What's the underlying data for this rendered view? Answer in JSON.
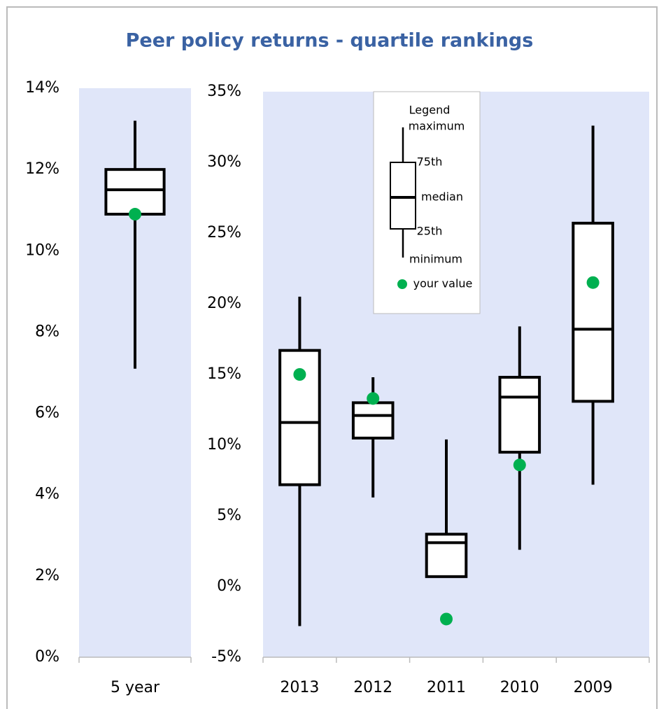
{
  "chart_data": [
    {
      "type": "box",
      "title": "Peer policy returns - quartile rankings",
      "categories": [
        "5 year"
      ],
      "max": [
        13.2
      ],
      "q3": [
        12.0
      ],
      "median": [
        11.5
      ],
      "q1": [
        10.9
      ],
      "min": [
        7.1
      ],
      "your_value": [
        10.9
      ],
      "box_color": "#000000",
      "dot_color": "#00b050",
      "background": "#e0e6f9",
      "ylim": [
        0,
        14
      ],
      "yticks": [
        {
          "value": 0,
          "label": "0%"
        },
        {
          "value": 2,
          "label": "2%"
        },
        {
          "value": 4,
          "label": "4%"
        },
        {
          "value": 6,
          "label": "6%"
        },
        {
          "value": 8,
          "label": "8%"
        },
        {
          "value": 10,
          "label": "10%"
        },
        {
          "value": 12,
          "label": "12%"
        },
        {
          "value": 14,
          "label": "14%"
        }
      ]
    },
    {
      "type": "box",
      "categories": [
        "2013",
        "2012",
        "2011",
        "2010",
        "2009"
      ],
      "max": [
        20.5,
        14.8,
        10.4,
        18.4,
        32.6
      ],
      "q3": [
        16.7,
        13.0,
        3.7,
        14.8,
        25.7
      ],
      "median": [
        11.6,
        12.1,
        3.1,
        13.4,
        18.2
      ],
      "q1": [
        7.2,
        10.5,
        0.7,
        9.5,
        13.1
      ],
      "min": [
        -2.8,
        6.3,
        0.7,
        2.6,
        7.2
      ],
      "your_value": [
        15.0,
        13.3,
        -2.3,
        8.6,
        21.5
      ],
      "box_color": "#000000",
      "dot_color": "#00b050",
      "background": "#e0e6f9",
      "ylim": [
        -5,
        35
      ],
      "yticks": [
        {
          "value": -5,
          "label": "-5%"
        },
        {
          "value": 0,
          "label": "0%"
        },
        {
          "value": 5,
          "label": "5%"
        },
        {
          "value": 10,
          "label": "10%"
        },
        {
          "value": 15,
          "label": "15%"
        },
        {
          "value": 20,
          "label": "20%"
        },
        {
          "value": 25,
          "label": "25%"
        },
        {
          "value": 30,
          "label": "30%"
        },
        {
          "value": 35,
          "label": "35%"
        }
      ],
      "legend": {
        "title": "Legend",
        "maximum": "maximum",
        "q3": "75th",
        "median": "median",
        "q1": "25th",
        "minimum": "minimum",
        "your_value": "your value"
      }
    }
  ]
}
